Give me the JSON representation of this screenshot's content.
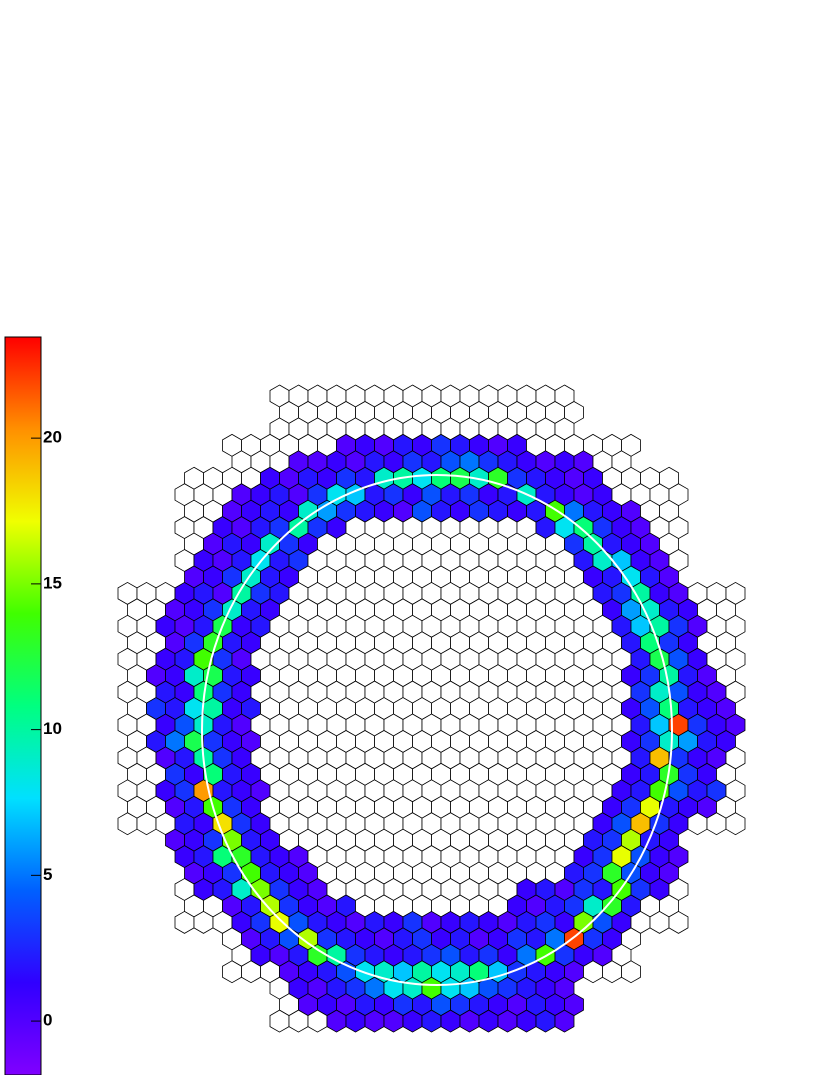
{
  "chart_data": {
    "type": "hexmap",
    "zlim": [
      -1.85,
      23.47
    ],
    "zticks": [
      0,
      5,
      10,
      15,
      20
    ],
    "palette": [
      "#8000ff",
      "#3000ff",
      "#0060ff",
      "#00e0ff",
      "#00ff80",
      "#40ff00",
      "#f0ff00",
      "#ff9000",
      "#ff0000"
    ],
    "z": [
      [
        null,
        null,
        null,
        null,
        null,
        null,
        null,
        null,
        null,
        null,
        null,
        null,
        null,
        null,
        null,
        null,
        null,
        null,
        null,
        null,
        null,
        null,
        null,
        null,
        null,
        null,
        null,
        null,
        null,
        null,
        null,
        null,
        null
      ],
      [
        null,
        null,
        null,
        null,
        null,
        null,
        null,
        null,
        null,
        null,
        null,
        null,
        null,
        null,
        null,
        null,
        null,
        null,
        null,
        null,
        null,
        null,
        null,
        null,
        null,
        null,
        null,
        null,
        null,
        null,
        null,
        null,
        null
      ],
      [
        null,
        null,
        null,
        null,
        null,
        null,
        null,
        null,
        null,
        null,
        null,
        null,
        null,
        null,
        null,
        null,
        null,
        null,
        null,
        null,
        null,
        null,
        null,
        null,
        null,
        null,
        null,
        null,
        null,
        null,
        null,
        null,
        null
      ],
      [
        null,
        null,
        null,
        null,
        null,
        null,
        null,
        null,
        null,
        null,
        null,
        0,
        1,
        0,
        2,
        1,
        3,
        2,
        1,
        0,
        1,
        null,
        null,
        null,
        null,
        null,
        null,
        null,
        null,
        null,
        null,
        null,
        null
      ],
      [
        null,
        null,
        null,
        null,
        null,
        null,
        null,
        null,
        null,
        0,
        0,
        1,
        0,
        2,
        1,
        3,
        2,
        4,
        5,
        3,
        2,
        1,
        0,
        1,
        0,
        null,
        null,
        null,
        null,
        null,
        null,
        null,
        null
      ],
      [
        null,
        null,
        null,
        null,
        null,
        null,
        null,
        1,
        0,
        2,
        1,
        3,
        2,
        9,
        10,
        8,
        11,
        12,
        9,
        13,
        3,
        2,
        1,
        0,
        1,
        null,
        null,
        null,
        null,
        null,
        null,
        null,
        null
      ],
      [
        null,
        null,
        null,
        null,
        null,
        null,
        0,
        1,
        2,
        0,
        3,
        8,
        7,
        2,
        3,
        1,
        4,
        2,
        3,
        1,
        2,
        9,
        2,
        1,
        0,
        1,
        null,
        null,
        null,
        null,
        null,
        null,
        null
      ],
      [
        null,
        null,
        null,
        null,
        null,
        0,
        1,
        2,
        1,
        9,
        6,
        3,
        2,
        1,
        0,
        4,
        2,
        1,
        3,
        2,
        1,
        2,
        14,
        5,
        2,
        1,
        0,
        null,
        null,
        null,
        null,
        null,
        null
      ],
      [
        null,
        null,
        null,
        null,
        null,
        1,
        0,
        2,
        3,
        10,
        3,
        1,
        null,
        null,
        null,
        null,
        null,
        null,
        null,
        null,
        null,
        null,
        2,
        8,
        11,
        3,
        1,
        0,
        null,
        null,
        null,
        null,
        null
      ],
      [
        null,
        null,
        null,
        null,
        0,
        2,
        1,
        9,
        3,
        1,
        null,
        null,
        null,
        null,
        null,
        null,
        null,
        null,
        null,
        null,
        null,
        null,
        null,
        3,
        10,
        2,
        1,
        0,
        null,
        null,
        null,
        null,
        null
      ],
      [
        null,
        null,
        null,
        null,
        1,
        0,
        2,
        8,
        2,
        3,
        null,
        null,
        null,
        null,
        null,
        null,
        null,
        null,
        null,
        null,
        null,
        null,
        null,
        null,
        2,
        9,
        7,
        1,
        0,
        null,
        null,
        null,
        null
      ],
      [
        null,
        null,
        null,
        0,
        1,
        3,
        9,
        2,
        1,
        null,
        null,
        null,
        null,
        null,
        null,
        null,
        null,
        null,
        null,
        null,
        null,
        null,
        null,
        null,
        1,
        2,
        8,
        2,
        0,
        null,
        null,
        null,
        null
      ],
      [
        null,
        null,
        null,
        1,
        2,
        0,
        10,
        3,
        2,
        null,
        null,
        null,
        null,
        null,
        null,
        null,
        null,
        null,
        null,
        null,
        null,
        null,
        null,
        null,
        null,
        2,
        3,
        10,
        1,
        0,
        null,
        null,
        null
      ],
      [
        null,
        null,
        0,
        1,
        3,
        9,
        2,
        1,
        null,
        null,
        null,
        null,
        null,
        null,
        null,
        null,
        null,
        null,
        null,
        null,
        null,
        null,
        null,
        null,
        null,
        1,
        6,
        9,
        2,
        1,
        null,
        null,
        null
      ],
      [
        null,
        null,
        1,
        0,
        2,
        12,
        1,
        2,
        null,
        null,
        null,
        null,
        null,
        null,
        null,
        null,
        null,
        null,
        null,
        null,
        null,
        null,
        null,
        null,
        null,
        null,
        2,
        7,
        10,
        3,
        0,
        null,
        null
      ],
      [
        null,
        null,
        0,
        3,
        13,
        2,
        1,
        null,
        null,
        null,
        null,
        null,
        null,
        null,
        null,
        null,
        null,
        null,
        null,
        null,
        null,
        null,
        null,
        null,
        null,
        null,
        2,
        11,
        3,
        1,
        null,
        null,
        null
      ],
      [
        null,
        null,
        1,
        2,
        14,
        3,
        0,
        null,
        null,
        null,
        null,
        null,
        null,
        null,
        null,
        null,
        null,
        null,
        null,
        null,
        null,
        null,
        null,
        null,
        null,
        null,
        null,
        2,
        12,
        4,
        1,
        null,
        null
      ],
      [
        null,
        0,
        1,
        9,
        12,
        2,
        1,
        null,
        null,
        null,
        null,
        null,
        null,
        null,
        null,
        null,
        null,
        null,
        null,
        null,
        null,
        null,
        null,
        null,
        null,
        null,
        1,
        3,
        10,
        2,
        0,
        null,
        null
      ],
      [
        null,
        null,
        2,
        1,
        11,
        3,
        1,
        null,
        null,
        null,
        null,
        null,
        null,
        null,
        null,
        null,
        null,
        null,
        null,
        null,
        null,
        null,
        null,
        null,
        null,
        null,
        null,
        3,
        9,
        4,
        1,
        0,
        null
      ],
      [
        null,
        3,
        2,
        8,
        10,
        1,
        2,
        null,
        null,
        null,
        null,
        null,
        null,
        null,
        null,
        null,
        null,
        null,
        null,
        null,
        null,
        null,
        null,
        null,
        null,
        null,
        1,
        4,
        11,
        2,
        1,
        0,
        null
      ],
      [
        null,
        null,
        1,
        4,
        9,
        2,
        0,
        null,
        null,
        null,
        null,
        null,
        null,
        null,
        null,
        null,
        null,
        null,
        null,
        null,
        null,
        null,
        null,
        null,
        null,
        null,
        null,
        2,
        7,
        22,
        3,
        1,
        0
      ],
      [
        null,
        2,
        5,
        12,
        3,
        1,
        0,
        null,
        null,
        null,
        null,
        null,
        null,
        null,
        null,
        null,
        null,
        null,
        null,
        null,
        null,
        null,
        null,
        null,
        null,
        null,
        1,
        3,
        9,
        6,
        2,
        1,
        null
      ],
      [
        null,
        null,
        0,
        2,
        10,
        3,
        1,
        null,
        null,
        null,
        null,
        null,
        null,
        null,
        null,
        null,
        null,
        null,
        null,
        null,
        null,
        null,
        null,
        null,
        null,
        null,
        null,
        2,
        19,
        3,
        1,
        0,
        null
      ],
      [
        null,
        null,
        3,
        1,
        11,
        2,
        1,
        null,
        null,
        null,
        null,
        null,
        null,
        null,
        null,
        null,
        null,
        null,
        null,
        null,
        null,
        null,
        null,
        null,
        null,
        null,
        1,
        2,
        13,
        3,
        1,
        null,
        null
      ],
      [
        null,
        null,
        1,
        3,
        20,
        2,
        1,
        0,
        null,
        null,
        null,
        null,
        null,
        null,
        null,
        null,
        null,
        null,
        null,
        null,
        null,
        null,
        null,
        null,
        null,
        null,
        1,
        2,
        14,
        4,
        2,
        3,
        null
      ],
      [
        null,
        null,
        0,
        2,
        14,
        3,
        1,
        null,
        null,
        null,
        null,
        null,
        null,
        null,
        null,
        null,
        null,
        null,
        null,
        null,
        null,
        null,
        null,
        null,
        null,
        1,
        3,
        17,
        2,
        1,
        0,
        null,
        null
      ],
      [
        null,
        null,
        null,
        2,
        1,
        18,
        3,
        1,
        null,
        null,
        null,
        null,
        null,
        null,
        null,
        null,
        null,
        null,
        null,
        null,
        null,
        null,
        null,
        null,
        null,
        1,
        4,
        19,
        3,
        1,
        null,
        null,
        null
      ],
      [
        null,
        null,
        0,
        1,
        3,
        15,
        2,
        1,
        null,
        null,
        null,
        null,
        null,
        null,
        null,
        null,
        null,
        null,
        null,
        null,
        null,
        null,
        null,
        null,
        2,
        3,
        16,
        2,
        1,
        null,
        null,
        null,
        null
      ],
      [
        null,
        null,
        null,
        1,
        2,
        11,
        13,
        2,
        1,
        0,
        null,
        null,
        null,
        null,
        null,
        null,
        null,
        null,
        null,
        null,
        null,
        null,
        null,
        null,
        1,
        3,
        17,
        4,
        1,
        0,
        null,
        null,
        null
      ],
      [
        null,
        null,
        null,
        0,
        1,
        3,
        14,
        2,
        1,
        0,
        null,
        null,
        null,
        null,
        null,
        null,
        null,
        null,
        null,
        null,
        null,
        null,
        null,
        2,
        3,
        13,
        4,
        1,
        0,
        null,
        null,
        null,
        null
      ],
      [
        null,
        null,
        null,
        null,
        1,
        2,
        9,
        15,
        3,
        1,
        0,
        null,
        null,
        null,
        null,
        null,
        null,
        null,
        null,
        null,
        null,
        1,
        2,
        0,
        3,
        2,
        14,
        3,
        1,
        null,
        null,
        null,
        null
      ],
      [
        null,
        null,
        null,
        null,
        null,
        0,
        2,
        16,
        3,
        1,
        0,
        2,
        null,
        null,
        null,
        null,
        null,
        null,
        null,
        null,
        1,
        0,
        2,
        3,
        9,
        13,
        2,
        null,
        null,
        null,
        null,
        null,
        null
      ],
      [
        null,
        null,
        null,
        null,
        null,
        null,
        1,
        3,
        17,
        4,
        2,
        1,
        0,
        2,
        1,
        3,
        0,
        1,
        2,
        1,
        0,
        2,
        3,
        1,
        15,
        4,
        1,
        null,
        null,
        null,
        null,
        null,
        null
      ],
      [
        null,
        null,
        null,
        null,
        null,
        null,
        0,
        2,
        4,
        16,
        3,
        2,
        1,
        0,
        2,
        3,
        1,
        2,
        0,
        1,
        3,
        2,
        5,
        22,
        3,
        1,
        null,
        null,
        null,
        null,
        null,
        null,
        null
      ],
      [
        null,
        null,
        null,
        null,
        null,
        null,
        null,
        1,
        0,
        2,
        13,
        10,
        3,
        2,
        1,
        2,
        3,
        4,
        2,
        3,
        1,
        5,
        14,
        3,
        1,
        0,
        null,
        null,
        null,
        null,
        null,
        null,
        null
      ],
      [
        null,
        null,
        null,
        null,
        null,
        null,
        null,
        null,
        0,
        1,
        2,
        4,
        8,
        9,
        7,
        10,
        8,
        9,
        11,
        7,
        3,
        2,
        1,
        0,
        null,
        null,
        null,
        null,
        null,
        null,
        null,
        null,
        null
      ],
      [
        null,
        null,
        null,
        null,
        null,
        null,
        null,
        null,
        null,
        1,
        0,
        2,
        3,
        5,
        8,
        9,
        14,
        8,
        7,
        4,
        3,
        2,
        1,
        0,
        null,
        null,
        null,
        null,
        null,
        null,
        null,
        null,
        null
      ],
      [
        null,
        null,
        null,
        null,
        null,
        null,
        null,
        null,
        null,
        0,
        1,
        0,
        2,
        1,
        3,
        2,
        4,
        3,
        2,
        1,
        0,
        2,
        1,
        0,
        null,
        null,
        null,
        null,
        null,
        null,
        null,
        null,
        null
      ],
      [
        null,
        null,
        null,
        null,
        null,
        null,
        null,
        null,
        null,
        null,
        null,
        0,
        1,
        0,
        0,
        1,
        2,
        1,
        0,
        1,
        0,
        1,
        2,
        0,
        null,
        null,
        null,
        null,
        null,
        null,
        null,
        null,
        null
      ]
    ]
  }
}
